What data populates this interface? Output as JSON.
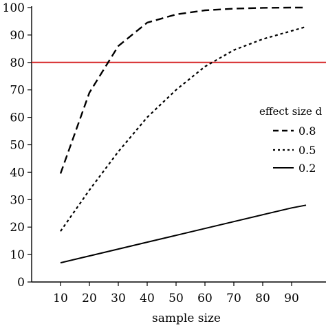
{
  "chart_data": {
    "type": "line",
    "xlabel": "sample size",
    "ylabel": "",
    "x_ticks": [
      10,
      20,
      30,
      40,
      50,
      60,
      70,
      80,
      90
    ],
    "y_ticks": [
      0,
      10,
      20,
      30,
      40,
      50,
      60,
      70,
      80,
      90,
      100
    ],
    "xlim": [
      0,
      95
    ],
    "ylim": [
      0,
      100
    ],
    "grid": false,
    "legend": {
      "title": "effect size d",
      "position": "right"
    },
    "reference_line": {
      "y": 80,
      "color": "#d62728"
    },
    "series": [
      {
        "name": "0.8",
        "style": "dashed",
        "x": [
          10,
          20,
          30,
          40,
          50,
          60,
          70,
          80,
          90,
          95
        ],
        "values": [
          39.5,
          69,
          86,
          94.5,
          97.5,
          99,
          99.6,
          99.9,
          100,
          100
        ]
      },
      {
        "name": "0.5",
        "style": "dotted",
        "x": [
          10,
          20,
          30,
          40,
          50,
          60,
          70,
          80,
          90,
          95
        ],
        "values": [
          18.5,
          33.5,
          47.5,
          60,
          70,
          78.5,
          84.5,
          88.5,
          91.5,
          93
        ]
      },
      {
        "name": "0.2",
        "style": "solid",
        "x": [
          10,
          20,
          30,
          40,
          50,
          60,
          70,
          80,
          90,
          95
        ],
        "values": [
          7,
          9.5,
          12,
          14.5,
          17,
          19.5,
          22,
          24.5,
          27,
          28
        ]
      }
    ]
  }
}
